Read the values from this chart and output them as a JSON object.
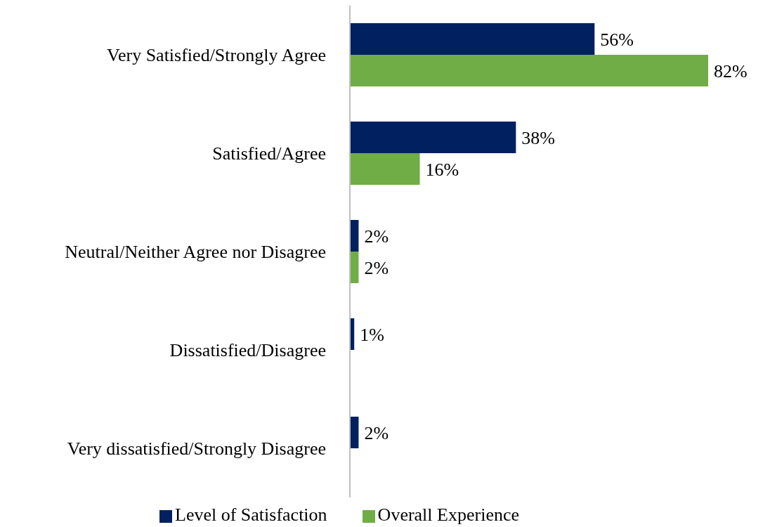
{
  "chart_data": {
    "type": "bar",
    "orientation": "horizontal",
    "categories": [
      "Very Satisfied/Strongly Agree",
      "Satisfied/Agree",
      "Neutral/Neither Agree nor Disagree",
      "Dissatisfied/Disagree",
      "Very dissatisfied/Strongly Disagree"
    ],
    "series": [
      {
        "name": "Level of Satisfaction",
        "color": "#002060",
        "values": [
          56,
          38,
          2,
          1,
          2
        ],
        "value_labels": [
          "56%",
          "38%",
          "2%",
          "1%",
          "2%"
        ]
      },
      {
        "name": "Overall Experience",
        "color": "#70ad47",
        "values": [
          82,
          16,
          2,
          null,
          null
        ],
        "value_labels": [
          "82%",
          "16%",
          "2%",
          null,
          null
        ]
      }
    ],
    "legend": "bottom"
  }
}
